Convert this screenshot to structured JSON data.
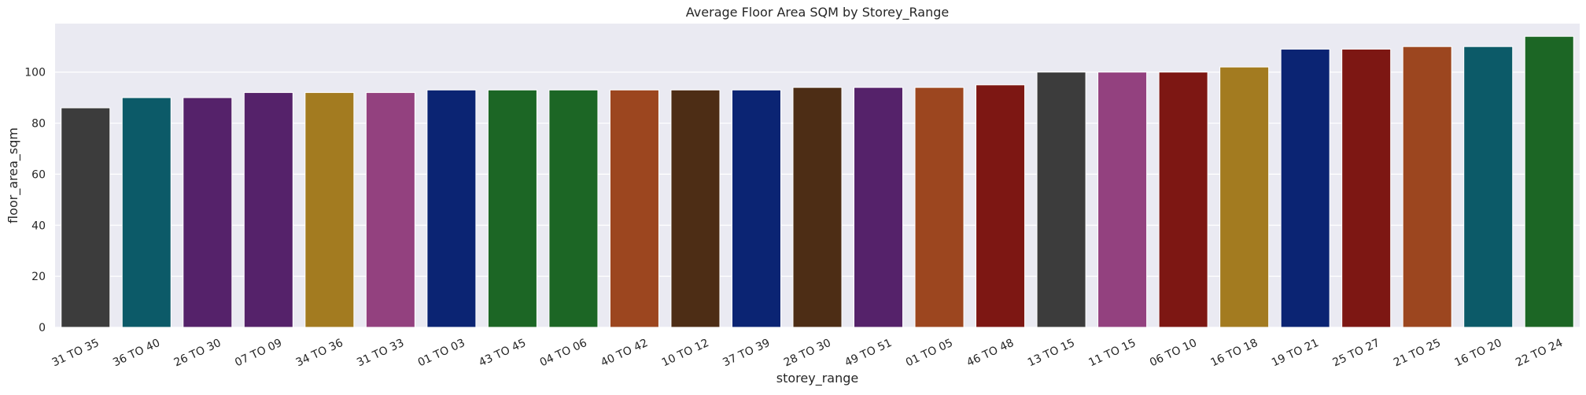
{
  "chart_data": {
    "type": "bar",
    "title": "Average Floor Area SQM by Storey_Range",
    "xlabel": "storey_range",
    "ylabel": "floor_area_sqm",
    "ylim": [
      0,
      119
    ],
    "yticks": [
      0,
      20,
      40,
      60,
      80,
      100
    ],
    "grid": true,
    "categories": [
      "31 TO 35",
      "36 TO 40",
      "26 TO 30",
      "07 TO 09",
      "34 TO 36",
      "31 TO 33",
      "01 TO 03",
      "43 TO 45",
      "04 TO 06",
      "40 TO 42",
      "10 TO 12",
      "37 TO 39",
      "28 TO 30",
      "49 TO 51",
      "01 TO 05",
      "46 TO 48",
      "13 TO 15",
      "11 TO 15",
      "06 TO 10",
      "16 TO 18",
      "19 TO 21",
      "25 TO 27",
      "21 TO 25",
      "16 TO 20",
      "22 TO 24"
    ],
    "values": [
      86,
      90,
      90,
      92,
      92,
      92,
      93,
      93,
      93,
      93,
      93,
      93,
      94,
      94,
      94,
      95,
      100,
      100,
      100,
      102,
      109,
      109,
      110,
      110,
      114
    ],
    "colors": [
      "#3c3c3c",
      "#0c5a68",
      "#55226a",
      "#55226a",
      "#a37b20",
      "#93417f",
      "#0b2473",
      "#1c6625",
      "#1c6625",
      "#9c461f",
      "#4d2d15",
      "#0b2473",
      "#4d2d15",
      "#55226a",
      "#9c461f",
      "#7d1713",
      "#3c3c3c",
      "#93417f",
      "#7d1713",
      "#a37b20",
      "#0b2473",
      "#7d1713",
      "#9c461f",
      "#0c5a68",
      "#1c6625"
    ],
    "plot_background": "#eaeaf2",
    "grid_color": "#ffffff"
  }
}
